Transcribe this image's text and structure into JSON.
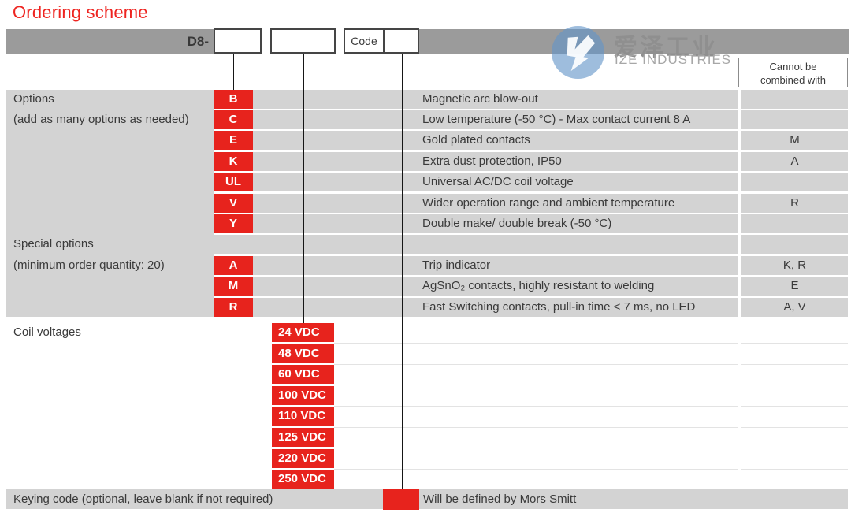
{
  "title": "Ordering scheme",
  "header": {
    "prefix": "D8-",
    "code_label": "Code",
    "cannot_header_line1": "Cannot be",
    "cannot_header_line2": "combined with"
  },
  "logo": {
    "cn": "爱泽工业",
    "en": "IZE INDUSTRIES"
  },
  "options": {
    "section_label": "Options",
    "section_sublabel": "(add as many options as needed)",
    "special_label": "Special options",
    "special_sublabel": "(minimum order quantity: 20)",
    "rows": [
      {
        "code": "B",
        "left": "Options",
        "desc": "Magnetic arc blow-out",
        "cannot": ""
      },
      {
        "code": "C",
        "left": "(add as many options as needed)",
        "desc": "Low temperature (-50 °C) - Max contact current 8 A",
        "cannot": ""
      },
      {
        "code": "E",
        "left": "",
        "desc": "Gold plated contacts",
        "cannot": "M"
      },
      {
        "code": "K",
        "left": "",
        "desc": "Extra dust protection, IP50",
        "cannot": "A"
      },
      {
        "code": "UL",
        "left": "",
        "desc": "Universal AC/DC coil voltage",
        "cannot": ""
      },
      {
        "code": "V",
        "left": "",
        "desc": "Wider operation range and ambient temperature",
        "cannot": "R"
      },
      {
        "code": "Y",
        "left": "",
        "desc": "Double make/ double break (-50 °C)",
        "cannot": ""
      },
      {
        "code": "",
        "left": "Special options",
        "desc": "",
        "cannot": ""
      },
      {
        "code": "A",
        "left": "(minimum order quantity: 20)",
        "desc": "Trip indicator",
        "cannot": "K, R"
      },
      {
        "code": "M",
        "left": "",
        "desc": "AgSnO₂ contacts, highly resistant to welding",
        "cannot": "E"
      },
      {
        "code": "R",
        "left": "",
        "desc": "Fast Switching contacts, pull-in time < 7 ms, no LED",
        "cannot": "A, V"
      }
    ]
  },
  "coil": {
    "label": "Coil voltages",
    "voltages": [
      "24 VDC",
      "48 VDC",
      "60 VDC",
      "100 VDC",
      "110 VDC",
      "125 VDC",
      "220 VDC",
      "250 VDC"
    ]
  },
  "keying": {
    "label": "Keying code (optional, leave blank if not required)",
    "note": "Will be defined by Mors Smitt"
  },
  "colors": {
    "accent_red": "#e7231d",
    "title_red": "#ee2420",
    "header_bar_gray": "#9b9b9b",
    "row_gray": "#d3d3d3",
    "text_dark": "#3a3a3a",
    "logo_blue": "#6294c8",
    "logo_text_gray": "#8f8f8f"
  }
}
